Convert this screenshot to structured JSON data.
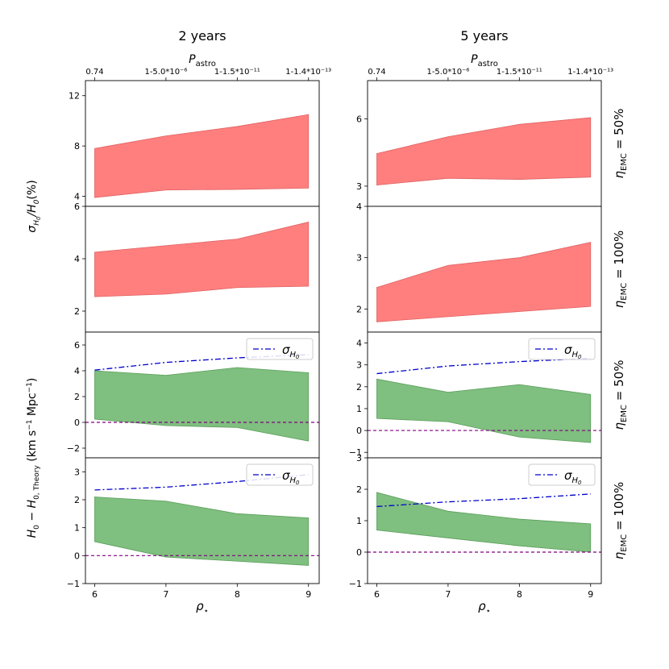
{
  "columns": [
    {
      "title": "2 years",
      "top_axis_label": "P_astro",
      "bottom_axis_label": "ρ⋆"
    },
    {
      "title": "5 years",
      "top_axis_label": "P_astro",
      "bottom_axis_label": "ρ⋆"
    }
  ],
  "row_labels": [
    {
      "text": "η_EMC = 50%"
    },
    {
      "text": "η_EMC = 100%"
    },
    {
      "text": "η_EMC = 50%"
    },
    {
      "text": "η_EMC = 100%"
    }
  ],
  "ylabel_top": "σ_H0/H0(%)",
  "ylabel_bottom": "H0 − H0,Theory (km s⁻¹ Mpc⁻¹)",
  "colors": {
    "red_fill": "#ff7f7f",
    "red_edge": "#e06060",
    "green_fill": "#7fbf7f",
    "green_edge": "#5a9e5a",
    "sigma_line": "#0000cc",
    "zero_line": "#800080"
  },
  "chart_data": [
    {
      "id": "2y_eta50_sigma",
      "type": "area",
      "x": [
        6,
        7,
        8,
        9
      ],
      "lower": [
        3.9,
        4.5,
        4.55,
        4.65
      ],
      "upper": [
        7.8,
        8.8,
        9.55,
        10.5
      ],
      "xticks": [
        6,
        7,
        8,
        9
      ],
      "yticks": [
        4,
        8,
        12
      ],
      "ylim": [
        3.2,
        13.2
      ],
      "top_ticks": [
        "0.74",
        "1-5.0*10⁻⁶",
        "1-1.5*10⁻¹¹",
        "1-1.4*10⁻¹³"
      ]
    },
    {
      "id": "2y_eta100_sigma",
      "type": "area",
      "x": [
        6,
        7,
        8,
        9
      ],
      "lower": [
        2.55,
        2.65,
        2.9,
        2.95
      ],
      "upper": [
        4.25,
        4.5,
        4.75,
        5.4
      ],
      "xticks": [
        6,
        7,
        8,
        9
      ],
      "yticks": [
        2,
        4,
        6
      ],
      "ylim": [
        1.2,
        6.0
      ]
    },
    {
      "id": "2y_eta50_bias",
      "type": "area",
      "x": [
        6,
        7,
        8,
        9
      ],
      "lower": [
        0.25,
        -0.25,
        -0.4,
        -1.45
      ],
      "upper": [
        4.0,
        3.65,
        4.25,
        3.85
      ],
      "sigma_line": [
        4.05,
        4.65,
        5.0,
        5.25
      ],
      "legend": "σ_H0",
      "xticks": [
        6,
        7,
        8,
        9
      ],
      "yticks": [
        -2,
        0,
        2,
        4,
        6
      ],
      "ylim": [
        -2.75,
        7.0
      ]
    },
    {
      "id": "2y_eta100_bias",
      "type": "area",
      "x": [
        6,
        7,
        8,
        9
      ],
      "lower": [
        0.5,
        -0.05,
        -0.2,
        -0.35
      ],
      "upper": [
        2.1,
        1.95,
        1.5,
        1.35
      ],
      "sigma_line": [
        2.35,
        2.45,
        2.65,
        2.9
      ],
      "legend": "σ_H0",
      "xticks": [
        6,
        7,
        8,
        9
      ],
      "yticks": [
        -1,
        0,
        1,
        2,
        3
      ],
      "ylim": [
        -1.0,
        3.5
      ]
    },
    {
      "id": "5y_eta50_sigma",
      "type": "area",
      "x": [
        6,
        7,
        8,
        9
      ],
      "lower": [
        3.05,
        3.35,
        3.3,
        3.4
      ],
      "upper": [
        4.45,
        5.2,
        5.75,
        6.05
      ],
      "xticks": [
        6,
        7,
        8,
        9
      ],
      "yticks": [
        3,
        6
      ],
      "ylim": [
        2.1,
        7.7
      ],
      "top_ticks": [
        "0.74",
        "1-5.0*10⁻⁶",
        "1-1.5*10⁻¹¹",
        "1-1.4*10⁻¹³"
      ]
    },
    {
      "id": "5y_eta100_sigma",
      "type": "area",
      "x": [
        6,
        7,
        8,
        9
      ],
      "lower": [
        1.75,
        1.85,
        1.95,
        2.05
      ],
      "upper": [
        2.42,
        2.85,
        3.0,
        3.3
      ],
      "xticks": [
        6,
        7,
        8,
        9
      ],
      "yticks": [
        2,
        3,
        4
      ],
      "ylim": [
        1.55,
        4.0
      ]
    },
    {
      "id": "5y_eta50_bias",
      "type": "area",
      "x": [
        6,
        7,
        8,
        9
      ],
      "lower": [
        0.55,
        0.4,
        -0.3,
        -0.55
      ],
      "upper": [
        2.35,
        1.75,
        2.1,
        1.65
      ],
      "sigma_line": [
        2.6,
        2.95,
        3.15,
        3.3
      ],
      "legend": "σ_H0",
      "xticks": [
        6,
        7,
        8,
        9
      ],
      "yticks": [
        -1,
        0,
        1,
        2,
        3,
        4
      ],
      "ylim": [
        -1.25,
        4.5
      ]
    },
    {
      "id": "5y_eta100_bias",
      "type": "area",
      "x": [
        6,
        7,
        8,
        9
      ],
      "lower": [
        0.7,
        0.45,
        0.2,
        0.0
      ],
      "upper": [
        1.9,
        1.3,
        1.05,
        0.9
      ],
      "sigma_line": [
        1.45,
        1.6,
        1.7,
        1.85
      ],
      "legend": "σ_H0",
      "xticks": [
        6,
        7,
        8,
        9
      ],
      "yticks": [
        -1,
        0,
        1,
        2,
        3
      ],
      "ylim": [
        -1.0,
        3.0
      ]
    }
  ]
}
